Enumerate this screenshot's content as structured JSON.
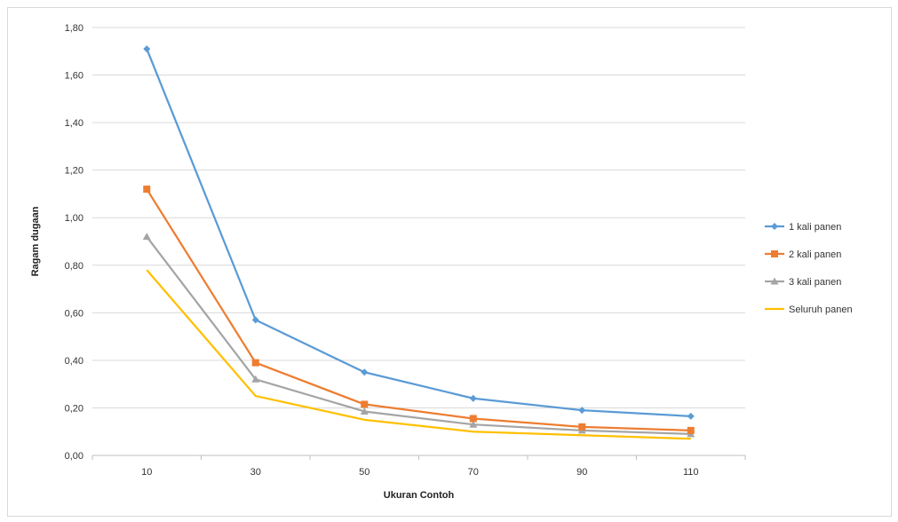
{
  "chart_data": {
    "type": "line",
    "title": "",
    "xlabel": "Ukuran Contoh",
    "ylabel": "Ragam dugaan",
    "categories": [
      "10",
      "30",
      "50",
      "70",
      "90",
      "110"
    ],
    "ylim": [
      0,
      1.8
    ],
    "ytick_labels": [
      "0,00",
      "0,20",
      "0,40",
      "0,60",
      "0,80",
      "1,00",
      "1,20",
      "1,40",
      "1,60",
      "1,80"
    ],
    "grid": true,
    "legend_position": "right",
    "series": [
      {
        "name": "1 kali panen",
        "color": "#5b9bd5",
        "marker": "diamond",
        "values": [
          1.71,
          0.57,
          0.35,
          0.24,
          0.19,
          0.165
        ]
      },
      {
        "name": "2 kali panen",
        "color": "#ed7d31",
        "marker": "square",
        "values": [
          1.12,
          0.39,
          0.215,
          0.155,
          0.12,
          0.105
        ]
      },
      {
        "name": "3 kali panen",
        "color": "#a5a5a5",
        "marker": "triangle",
        "values": [
          0.92,
          0.32,
          0.185,
          0.13,
          0.105,
          0.09
        ]
      },
      {
        "name": "Seluruh panen",
        "color": "#ffc000",
        "marker": "none",
        "values": [
          0.78,
          0.25,
          0.15,
          0.1,
          0.085,
          0.07
        ]
      }
    ]
  }
}
